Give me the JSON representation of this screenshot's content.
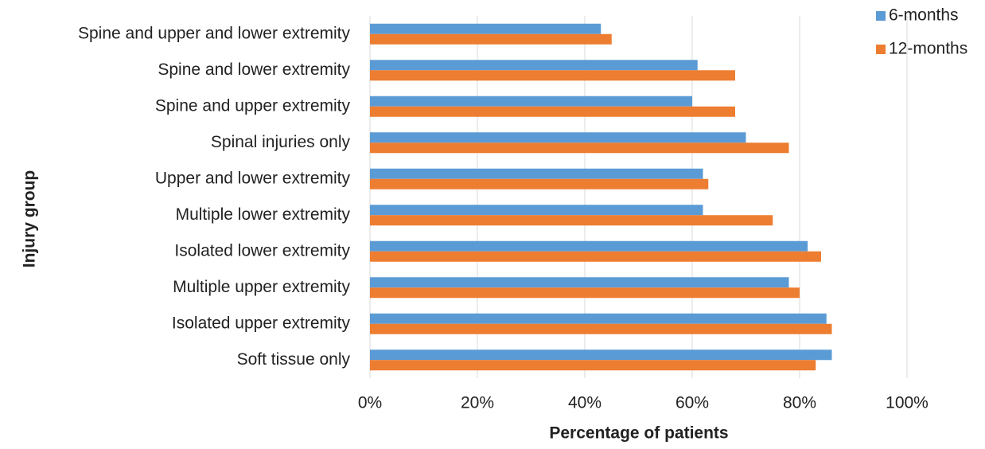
{
  "chart_data": {
    "type": "hbar",
    "x_label": "Percentage of patients",
    "y_label": "Injury group",
    "categories": [
      "Spine and upper and lower extremity",
      "Spine and lower extremity",
      "Spine and upper extremity",
      "Spinal injuries only",
      "Upper and lower extremity",
      "Multiple lower extremity",
      "Isolated lower extremity",
      "Multiple upper extremity",
      "Isolated upper extremity",
      "Soft tissue only"
    ],
    "series": [
      {
        "name": "6-months",
        "color": "#5b9bd5",
        "values": [
          43,
          61,
          60,
          70,
          62,
          62,
          81.5,
          78,
          85,
          86
        ]
      },
      {
        "name": "12-months",
        "color": "#ed7d31",
        "values": [
          45,
          68,
          68,
          78,
          63,
          75,
          84,
          80,
          86,
          83
        ]
      }
    ],
    "xlim": [
      0,
      100
    ],
    "xticks": [
      {
        "value": 0,
        "label": "0%"
      },
      {
        "value": 20,
        "label": "20%"
      },
      {
        "value": 40,
        "label": "40%"
      },
      {
        "value": 60,
        "label": "60%"
      },
      {
        "value": 80,
        "label": "80%"
      },
      {
        "value": 100,
        "label": "100%"
      }
    ],
    "grid": true,
    "legend": "top-right"
  }
}
